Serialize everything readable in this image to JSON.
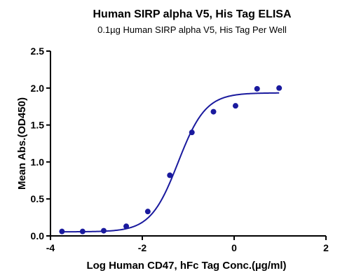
{
  "chart_data": {
    "type": "scatter",
    "title": "Human SIRP alpha V5, His Tag ELISA",
    "subtitle": "0.1µg Human SIRP alpha V5, His Tag Per Well",
    "xlabel": "Log Human CD47, hFc Tag Conc.(µg/ml)",
    "ylabel": "Mean Abs.(OD450)",
    "xlim": [
      -4,
      2
    ],
    "ylim": [
      0,
      2.5
    ],
    "xticks": [
      -4,
      -2,
      0,
      2
    ],
    "yticks": [
      0.0,
      0.5,
      1.0,
      1.5,
      2.0,
      2.5
    ],
    "xtick_labels": [
      "-4",
      "-2",
      "0",
      "2"
    ],
    "ytick_labels": [
      "0.0",
      "0.5",
      "1.0",
      "1.5",
      "2.0",
      "2.5"
    ],
    "grid": false,
    "color": "#1a1a9e",
    "series": [
      {
        "x": [
          -3.75,
          -3.3,
          -2.84,
          -2.35,
          -1.88,
          -1.4,
          -0.92,
          -0.45,
          0.03,
          0.5,
          0.98
        ],
        "values": [
          0.06,
          0.06,
          0.07,
          0.13,
          0.33,
          0.82,
          1.4,
          1.68,
          1.76,
          1.99,
          2.0
        ]
      }
    ],
    "fit_curve": {
      "model": "4PL",
      "bottom": 0.055,
      "top": 1.935,
      "logEC50": -1.22,
      "hill": 1.45
    }
  }
}
